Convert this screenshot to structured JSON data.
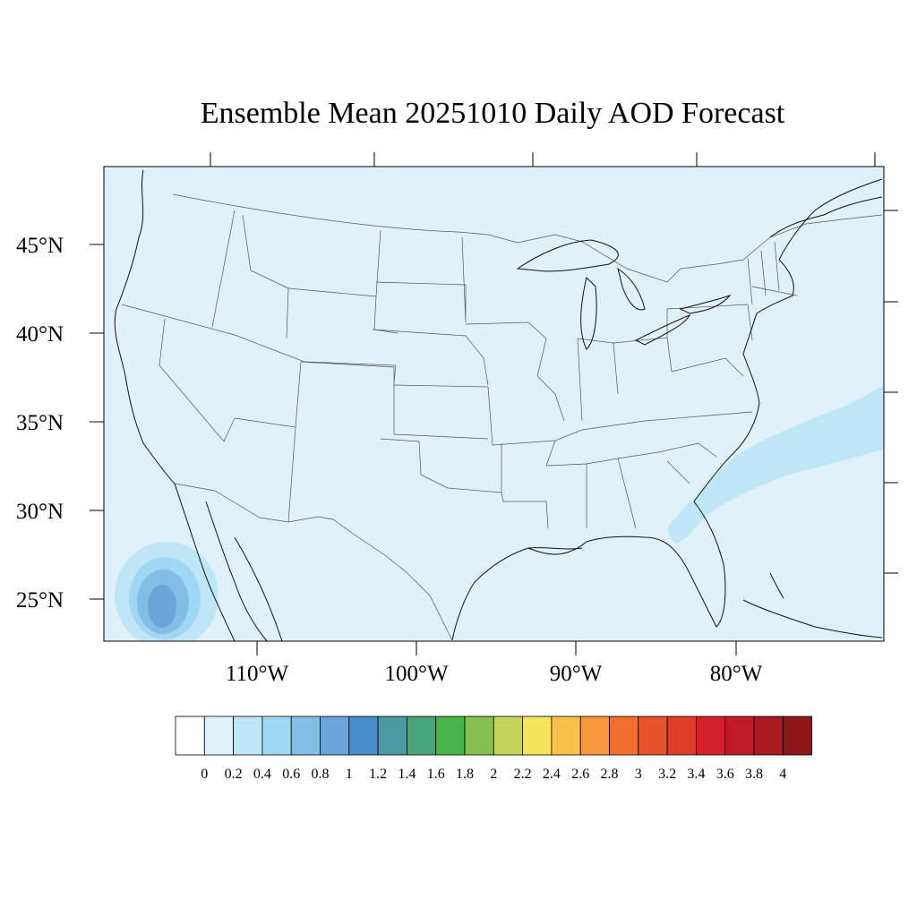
{
  "title": "Ensemble Mean 20251010 Daily AOD Forecast",
  "lat_labels": [
    "45°N",
    "40°N",
    "35°N",
    "30°N",
    "25°N"
  ],
  "lon_labels": [
    "110°W",
    "100°W",
    "90°W",
    "80°W"
  ],
  "colorbar": {
    "labels": [
      "0",
      "0.2",
      "0.4",
      "0.6",
      "0.8",
      "1",
      "1.2",
      "1.4",
      "1.6",
      "1.8",
      "2",
      "2.2",
      "2.4",
      "2.6",
      "2.8",
      "3",
      "3.2",
      "3.4",
      "3.6",
      "3.8",
      "4"
    ],
    "colors": [
      "#ffffff",
      "#dff1fb",
      "#bfe6f7",
      "#a0d8f3",
      "#82bde6",
      "#68a6da",
      "#4a8ec9",
      "#4a9a9f",
      "#48a577",
      "#47b54a",
      "#85c04e",
      "#c4d65a",
      "#f5e55a",
      "#f8c14a",
      "#f7983e",
      "#f36d2f",
      "#e8532c",
      "#e03c2a",
      "#d42028",
      "#c01c25",
      "#a81b21",
      "#8f1619"
    ]
  },
  "map": {
    "background_color": "#dff1fb",
    "features": [
      "aod-high-baja",
      "aod-plume-atlantic"
    ]
  }
}
